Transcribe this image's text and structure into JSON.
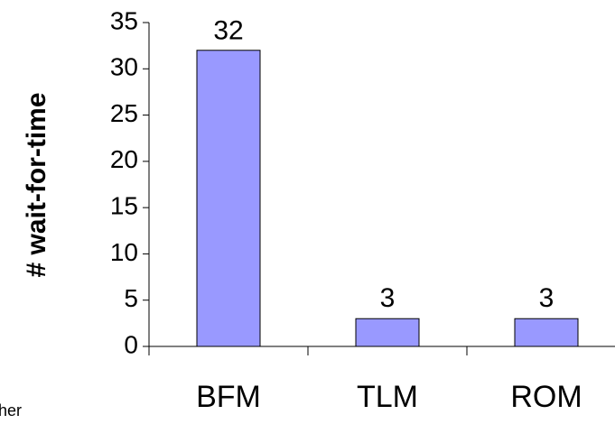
{
  "chart_data": {
    "type": "bar",
    "y_label": "# wait-for-time",
    "annotation": "her",
    "categories": [
      "BFM",
      "TLM",
      "ROM"
    ],
    "values": [
      32,
      3,
      3
    ],
    "color": "#9999ff",
    "ylim": [
      0,
      35
    ],
    "yticks": [
      0,
      5,
      10,
      15,
      20,
      25,
      30,
      35
    ],
    "grid": false
  }
}
